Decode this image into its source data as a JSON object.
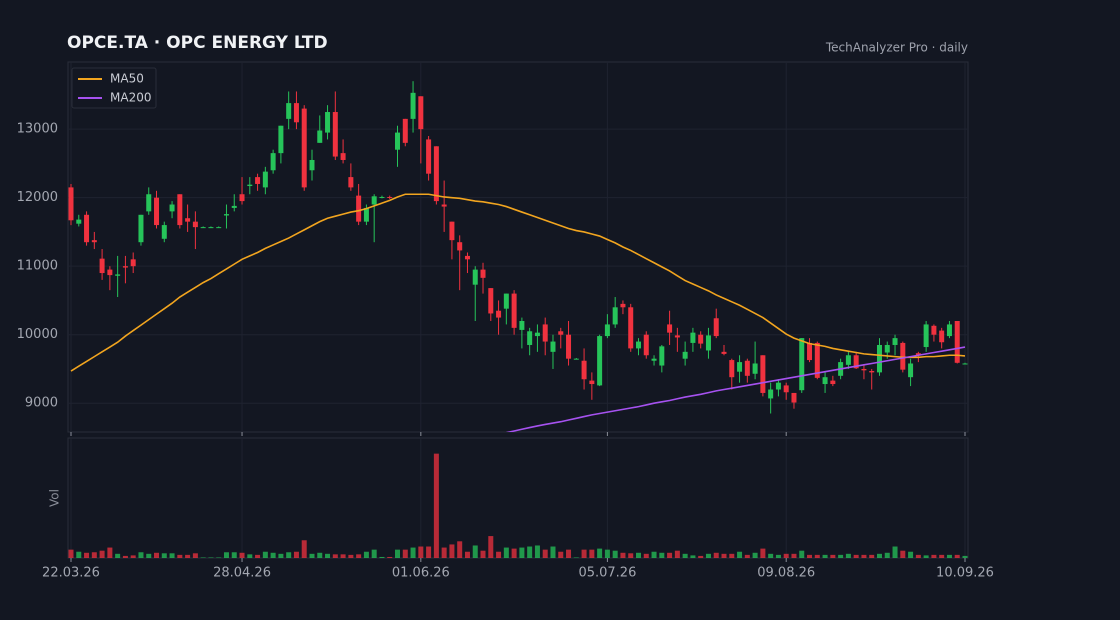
{
  "chart_data": {
    "type": "candlestick",
    "title": "OPCE.TA  ·  OPC ENERGY LTD",
    "subtitle": "TechAnalyzer Pro · daily",
    "categories": [
      "22.03.26",
      null,
      null,
      null,
      null,
      null,
      null,
      null,
      null,
      null,
      null,
      null,
      null,
      null,
      null,
      null,
      null,
      null,
      null,
      null,
      null,
      null,
      "28.04.26",
      null,
      null,
      null,
      null,
      null,
      null,
      null,
      null,
      null,
      null,
      null,
      null,
      null,
      null,
      null,
      null,
      null,
      null,
      null,
      null,
      null,
      null,
      "01.06.26",
      null,
      null,
      null,
      null,
      null,
      null,
      null,
      null,
      null,
      null,
      null,
      null,
      null,
      null,
      null,
      null,
      null,
      null,
      null,
      null,
      null,
      null,
      null,
      "05.07.26",
      null,
      null,
      null,
      null,
      null,
      null,
      null,
      null,
      null,
      null,
      null,
      null,
      null,
      null,
      null,
      null,
      null,
      null,
      null,
      null,
      null,
      null,
      "09.08.26",
      null,
      null,
      null,
      null,
      null,
      null,
      null,
      null,
      null,
      null,
      null,
      null,
      null,
      null,
      null,
      null,
      null,
      null,
      null,
      null,
      null,
      null,
      "10.09.26"
    ],
    "open": [
      12150,
      11620,
      11750,
      11380,
      11110,
      10950,
      10860,
      11000,
      11100,
      11350,
      11800,
      12000,
      11400,
      11800,
      12050,
      11700,
      11650,
      11570,
      11570,
      11570,
      11740,
      11850,
      12050,
      12170,
      12300,
      12150,
      12400,
      12650,
      13150,
      13380,
      13300,
      12400,
      12800,
      12950,
      13250,
      12650,
      12300,
      12030,
      11650,
      11900,
      12000,
      12010,
      12700,
      13150,
      13150,
      13480,
      12850,
      12750,
      11900,
      11650,
      11350,
      11150,
      10730,
      10950,
      10680,
      10350,
      10380,
      10600,
      10070,
      9850,
      9980,
      10150,
      9750,
      10050,
      10000,
      9650,
      9620,
      9330,
      9260,
      9980,
      10150,
      10450,
      10400,
      9800,
      10000,
      9620,
      9550,
      10150,
      9990,
      9650,
      9880,
      10000,
      9770,
      10240,
      9750,
      9630,
      9460,
      9620,
      9430,
      9700,
      9070,
      9200,
      9260,
      9150,
      9190,
      9880,
      9880,
      9280,
      9330,
      9400,
      9560,
      9700,
      9500,
      9470,
      9450,
      9740,
      9850,
      9880,
      9380,
      9730,
      9820,
      10130,
      10060,
      9980,
      10200,
      9580
    ],
    "high": [
      12200,
      11750,
      11800,
      11500,
      11250,
      11000,
      11150,
      11150,
      11200,
      11750,
      12150,
      12100,
      11650,
      11950,
      12050,
      11900,
      11800,
      11580,
      11580,
      11580,
      11900,
      12050,
      12300,
      12300,
      12350,
      12450,
      12700,
      13050,
      13550,
      13550,
      13350,
      12700,
      13200,
      13350,
      13550,
      12850,
      12500,
      12200,
      11900,
      12050,
      12030,
      12030,
      13050,
      13150,
      13700,
      13480,
      12900,
      12750,
      12250,
      11650,
      11450,
      11200,
      11000,
      11050,
      10680,
      10500,
      10600,
      10650,
      10250,
      10100,
      10150,
      10250,
      10000,
      10100,
      10200,
      9660,
      9800,
      9450,
      10000,
      10300,
      10550,
      10500,
      10450,
      9950,
      10050,
      9700,
      9850,
      10350,
      10100,
      9900,
      10100,
      10050,
      10100,
      10380,
      9850,
      9650,
      9700,
      9650,
      9900,
      9700,
      9300,
      9350,
      9300,
      9150,
      9950,
      9950,
      9900,
      9450,
      9400,
      9650,
      9750,
      9750,
      9550,
      9500,
      9950,
      9900,
      10000,
      9900,
      9650,
      9750,
      10200,
      10150,
      10100,
      10200,
      10200,
      9590
    ],
    "low": [
      11600,
      11580,
      11300,
      11250,
      10800,
      10650,
      10550,
      10750,
      10900,
      11300,
      11750,
      11550,
      11350,
      11700,
      11550,
      11500,
      11250,
      11560,
      11560,
      11560,
      11550,
      11800,
      11900,
      12050,
      12100,
      12050,
      12350,
      12500,
      13000,
      13000,
      12100,
      12250,
      12800,
      12850,
      12550,
      12500,
      12100,
      11600,
      11600,
      11350,
      11990,
      11980,
      12450,
      12750,
      12950,
      12500,
      12250,
      11900,
      11500,
      11100,
      10650,
      10900,
      10200,
      10600,
      10200,
      10000,
      10150,
      10000,
      9800,
      9700,
      9750,
      9700,
      9500,
      9800,
      9550,
      9640,
      9200,
      9050,
      9250,
      9950,
      10100,
      10300,
      9750,
      9700,
      9650,
      9550,
      9450,
      9850,
      9750,
      9550,
      9750,
      9800,
      9650,
      9950,
      9700,
      9200,
      9300,
      9300,
      9350,
      9100,
      8850,
      9100,
      9050,
      8920,
      9150,
      9600,
      9350,
      9150,
      9250,
      9350,
      9500,
      9500,
      9350,
      9200,
      9400,
      9650,
      9700,
      9450,
      9250,
      9600,
      9750,
      9900,
      9800,
      9950,
      9580,
      9570
    ],
    "close": [
      11670,
      11680,
      11350,
      11350,
      10900,
      10870,
      10880,
      10980,
      11000,
      11750,
      12050,
      11600,
      11600,
      11900,
      11600,
      11650,
      11570,
      11570,
      11570,
      11570,
      11760,
      11880,
      11950,
      12190,
      12200,
      12380,
      12650,
      13050,
      13380,
      13100,
      12150,
      12550,
      12980,
      13250,
      12600,
      12550,
      12150,
      11650,
      11850,
      12020,
      12010,
      12000,
      12950,
      12800,
      13530,
      13000,
      12350,
      11950,
      11870,
      11380,
      11230,
      11100,
      10950,
      10830,
      10310,
      10250,
      10600,
      10100,
      10200,
      10050,
      10030,
      9900,
      9900,
      10000,
      9650,
      9650,
      9350,
      9280,
      9980,
      10150,
      10400,
      10400,
      9800,
      9900,
      9700,
      9650,
      9830,
      10030,
      9960,
      9750,
      10030,
      9870,
      9990,
      9980,
      9720,
      9380,
      9600,
      9400,
      9580,
      9150,
      9200,
      9300,
      9160,
      9010,
      9950,
      9630,
      9370,
      9380,
      9280,
      9600,
      9700,
      9510,
      9480,
      9450,
      9850,
      9850,
      9950,
      9490,
      9580,
      9700,
      10150,
      10000,
      9890,
      10150,
      9590,
      9580
    ],
    "up_color": "#26c45a",
    "down_color": "#f0323f",
    "ylim": [
      8580,
      13980
    ],
    "yticks": [
      9000,
      10000,
      11000,
      12000,
      13000
    ],
    "grid": true,
    "legend": "upper left",
    "series": [
      {
        "name": "MA50",
        "color": "#f2a51f",
        "values": [
          9470,
          9540,
          9610,
          9680,
          9750,
          9820,
          9890,
          9980,
          10060,
          10140,
          10220,
          10300,
          10380,
          10460,
          10550,
          10620,
          10690,
          10760,
          10820,
          10890,
          10960,
          11030,
          11100,
          11150,
          11200,
          11260,
          11310,
          11360,
          11410,
          11470,
          11530,
          11590,
          11650,
          11700,
          11730,
          11760,
          11790,
          11810,
          11840,
          11880,
          11920,
          11960,
          12010,
          12050,
          12050,
          12050,
          12050,
          12030,
          12010,
          12000,
          11990,
          11970,
          11950,
          11940,
          11920,
          11900,
          11870,
          11830,
          11790,
          11750,
          11710,
          11670,
          11630,
          11590,
          11550,
          11520,
          11500,
          11470,
          11440,
          11390,
          11340,
          11280,
          11230,
          11170,
          11110,
          11050,
          10990,
          10930,
          10860,
          10790,
          10740,
          10690,
          10640,
          10580,
          10530,
          10480,
          10430,
          10370,
          10310,
          10250,
          10170,
          10090,
          10010,
          9950,
          9910,
          9870,
          9850,
          9830,
          9800,
          9780,
          9760,
          9740,
          9720,
          9710,
          9700,
          9690,
          9680,
          9670,
          9670,
          9670,
          9680,
          9680,
          9690,
          9700,
          9700,
          9690
        ]
      },
      {
        "name": "MA200",
        "color": "#a652f0",
        "values": [
          null,
          null,
          null,
          null,
          null,
          null,
          null,
          null,
          null,
          null,
          null,
          null,
          null,
          null,
          null,
          null,
          null,
          null,
          null,
          null,
          null,
          null,
          null,
          null,
          null,
          null,
          null,
          null,
          null,
          null,
          null,
          null,
          null,
          null,
          null,
          null,
          null,
          null,
          null,
          null,
          null,
          null,
          null,
          null,
          null,
          null,
          null,
          null,
          null,
          null,
          null,
          null,
          null,
          null,
          null,
          null,
          8570,
          8595,
          8620,
          8645,
          8668,
          8690,
          8710,
          8730,
          8755,
          8780,
          8805,
          8830,
          8850,
          8870,
          8890,
          8910,
          8930,
          8950,
          8975,
          9000,
          9020,
          9040,
          9065,
          9090,
          9110,
          9130,
          9155,
          9180,
          9200,
          9220,
          9240,
          9260,
          9280,
          9300,
          9320,
          9340,
          9360,
          9380,
          9400,
          9420,
          9440,
          9460,
          9480,
          9500,
          9520,
          9540,
          9560,
          9580,
          9600,
          9620,
          9640,
          9660,
          9680,
          9700,
          9720,
          9740,
          9760,
          9780,
          9800,
          9820
        ]
      }
    ],
    "volume": {
      "label": "Vol",
      "ylim": [
        0,
        1150
      ],
      "values": [
        80,
        60,
        50,
        55,
        70,
        100,
        40,
        20,
        25,
        55,
        40,
        50,
        45,
        45,
        30,
        30,
        45,
        5,
        5,
        5,
        55,
        55,
        50,
        35,
        30,
        60,
        50,
        40,
        55,
        60,
        170,
        40,
        50,
        40,
        35,
        35,
        30,
        35,
        60,
        80,
        10,
        10,
        80,
        80,
        100,
        110,
        110,
        1000,
        100,
        130,
        160,
        60,
        120,
        70,
        210,
        60,
        100,
        90,
        100,
        110,
        120,
        80,
        110,
        60,
        80,
        5,
        80,
        80,
        90,
        80,
        70,
        50,
        45,
        50,
        40,
        60,
        50,
        50,
        70,
        40,
        25,
        20,
        40,
        50,
        40,
        40,
        60,
        30,
        50,
        90,
        40,
        30,
        40,
        40,
        70,
        30,
        30,
        30,
        30,
        30,
        40,
        30,
        30,
        30,
        40,
        50,
        110,
        70,
        60,
        30,
        25,
        30,
        30,
        30,
        30,
        20
      ]
    }
  }
}
